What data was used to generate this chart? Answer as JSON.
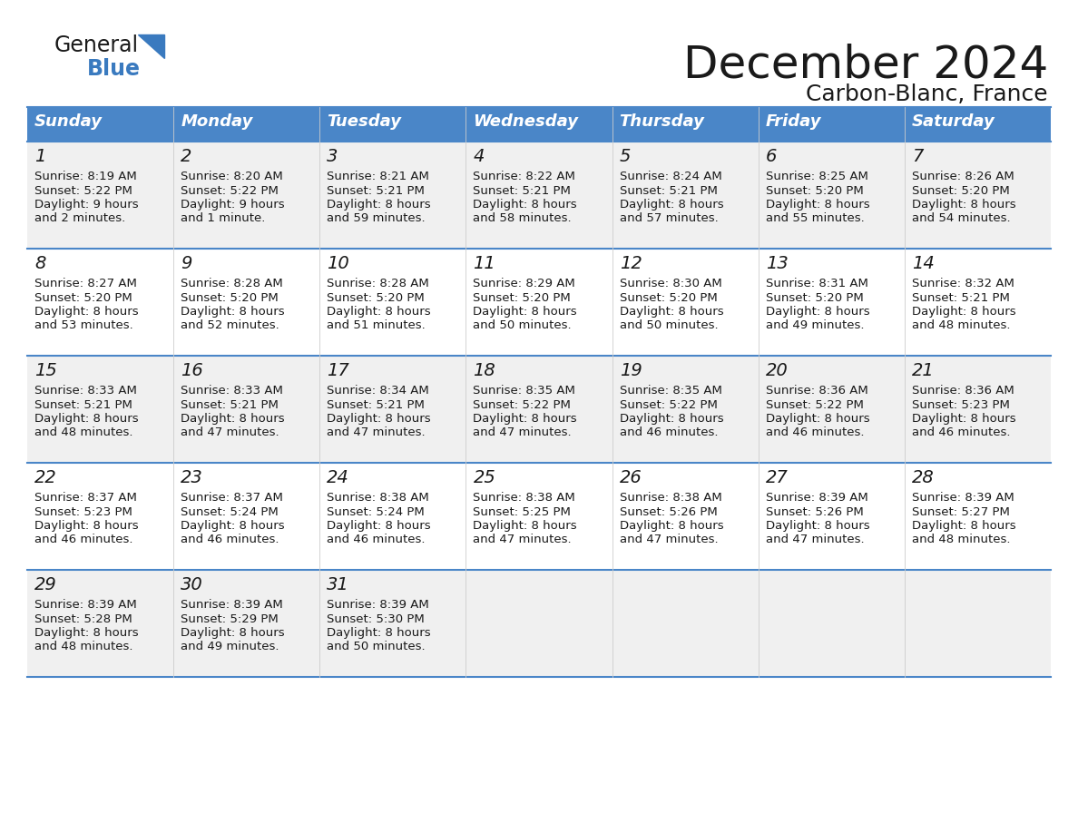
{
  "title": "December 2024",
  "subtitle": "Carbon-Blanc, France",
  "header_bg": "#4a86c8",
  "header_text_color": "#ffffff",
  "cell_bg_light": "#f0f0f0",
  "cell_bg_white": "#ffffff",
  "border_color": "#4a86c8",
  "days_of_week": [
    "Sunday",
    "Monday",
    "Tuesday",
    "Wednesday",
    "Thursday",
    "Friday",
    "Saturday"
  ],
  "calendar_data": [
    [
      {
        "day": 1,
        "sunrise": "8:19 AM",
        "sunset": "5:22 PM",
        "daylight": "9 hours and 2 minutes."
      },
      {
        "day": 2,
        "sunrise": "8:20 AM",
        "sunset": "5:22 PM",
        "daylight": "9 hours and 1 minute."
      },
      {
        "day": 3,
        "sunrise": "8:21 AM",
        "sunset": "5:21 PM",
        "daylight": "8 hours and 59 minutes."
      },
      {
        "day": 4,
        "sunrise": "8:22 AM",
        "sunset": "5:21 PM",
        "daylight": "8 hours and 58 minutes."
      },
      {
        "day": 5,
        "sunrise": "8:24 AM",
        "sunset": "5:21 PM",
        "daylight": "8 hours and 57 minutes."
      },
      {
        "day": 6,
        "sunrise": "8:25 AM",
        "sunset": "5:20 PM",
        "daylight": "8 hours and 55 minutes."
      },
      {
        "day": 7,
        "sunrise": "8:26 AM",
        "sunset": "5:20 PM",
        "daylight": "8 hours and 54 minutes."
      }
    ],
    [
      {
        "day": 8,
        "sunrise": "8:27 AM",
        "sunset": "5:20 PM",
        "daylight": "8 hours and 53 minutes."
      },
      {
        "day": 9,
        "sunrise": "8:28 AM",
        "sunset": "5:20 PM",
        "daylight": "8 hours and 52 minutes."
      },
      {
        "day": 10,
        "sunrise": "8:28 AM",
        "sunset": "5:20 PM",
        "daylight": "8 hours and 51 minutes."
      },
      {
        "day": 11,
        "sunrise": "8:29 AM",
        "sunset": "5:20 PM",
        "daylight": "8 hours and 50 minutes."
      },
      {
        "day": 12,
        "sunrise": "8:30 AM",
        "sunset": "5:20 PM",
        "daylight": "8 hours and 50 minutes."
      },
      {
        "day": 13,
        "sunrise": "8:31 AM",
        "sunset": "5:20 PM",
        "daylight": "8 hours and 49 minutes."
      },
      {
        "day": 14,
        "sunrise": "8:32 AM",
        "sunset": "5:21 PM",
        "daylight": "8 hours and 48 minutes."
      }
    ],
    [
      {
        "day": 15,
        "sunrise": "8:33 AM",
        "sunset": "5:21 PM",
        "daylight": "8 hours and 48 minutes."
      },
      {
        "day": 16,
        "sunrise": "8:33 AM",
        "sunset": "5:21 PM",
        "daylight": "8 hours and 47 minutes."
      },
      {
        "day": 17,
        "sunrise": "8:34 AM",
        "sunset": "5:21 PM",
        "daylight": "8 hours and 47 minutes."
      },
      {
        "day": 18,
        "sunrise": "8:35 AM",
        "sunset": "5:22 PM",
        "daylight": "8 hours and 47 minutes."
      },
      {
        "day": 19,
        "sunrise": "8:35 AM",
        "sunset": "5:22 PM",
        "daylight": "8 hours and 46 minutes."
      },
      {
        "day": 20,
        "sunrise": "8:36 AM",
        "sunset": "5:22 PM",
        "daylight": "8 hours and 46 minutes."
      },
      {
        "day": 21,
        "sunrise": "8:36 AM",
        "sunset": "5:23 PM",
        "daylight": "8 hours and 46 minutes."
      }
    ],
    [
      {
        "day": 22,
        "sunrise": "8:37 AM",
        "sunset": "5:23 PM",
        "daylight": "8 hours and 46 minutes."
      },
      {
        "day": 23,
        "sunrise": "8:37 AM",
        "sunset": "5:24 PM",
        "daylight": "8 hours and 46 minutes."
      },
      {
        "day": 24,
        "sunrise": "8:38 AM",
        "sunset": "5:24 PM",
        "daylight": "8 hours and 46 minutes."
      },
      {
        "day": 25,
        "sunrise": "8:38 AM",
        "sunset": "5:25 PM",
        "daylight": "8 hours and 47 minutes."
      },
      {
        "day": 26,
        "sunrise": "8:38 AM",
        "sunset": "5:26 PM",
        "daylight": "8 hours and 47 minutes."
      },
      {
        "day": 27,
        "sunrise": "8:39 AM",
        "sunset": "5:26 PM",
        "daylight": "8 hours and 47 minutes."
      },
      {
        "day": 28,
        "sunrise": "8:39 AM",
        "sunset": "5:27 PM",
        "daylight": "8 hours and 48 minutes."
      }
    ],
    [
      {
        "day": 29,
        "sunrise": "8:39 AM",
        "sunset": "5:28 PM",
        "daylight": "8 hours and 48 minutes."
      },
      {
        "day": 30,
        "sunrise": "8:39 AM",
        "sunset": "5:29 PM",
        "daylight": "8 hours and 49 minutes."
      },
      {
        "day": 31,
        "sunrise": "8:39 AM",
        "sunset": "5:30 PM",
        "daylight": "8 hours and 50 minutes."
      },
      null,
      null,
      null,
      null
    ]
  ],
  "logo_color_general": "#1a1a1a",
  "logo_color_blue": "#3a7abf",
  "logo_triangle_color": "#3a7abf"
}
